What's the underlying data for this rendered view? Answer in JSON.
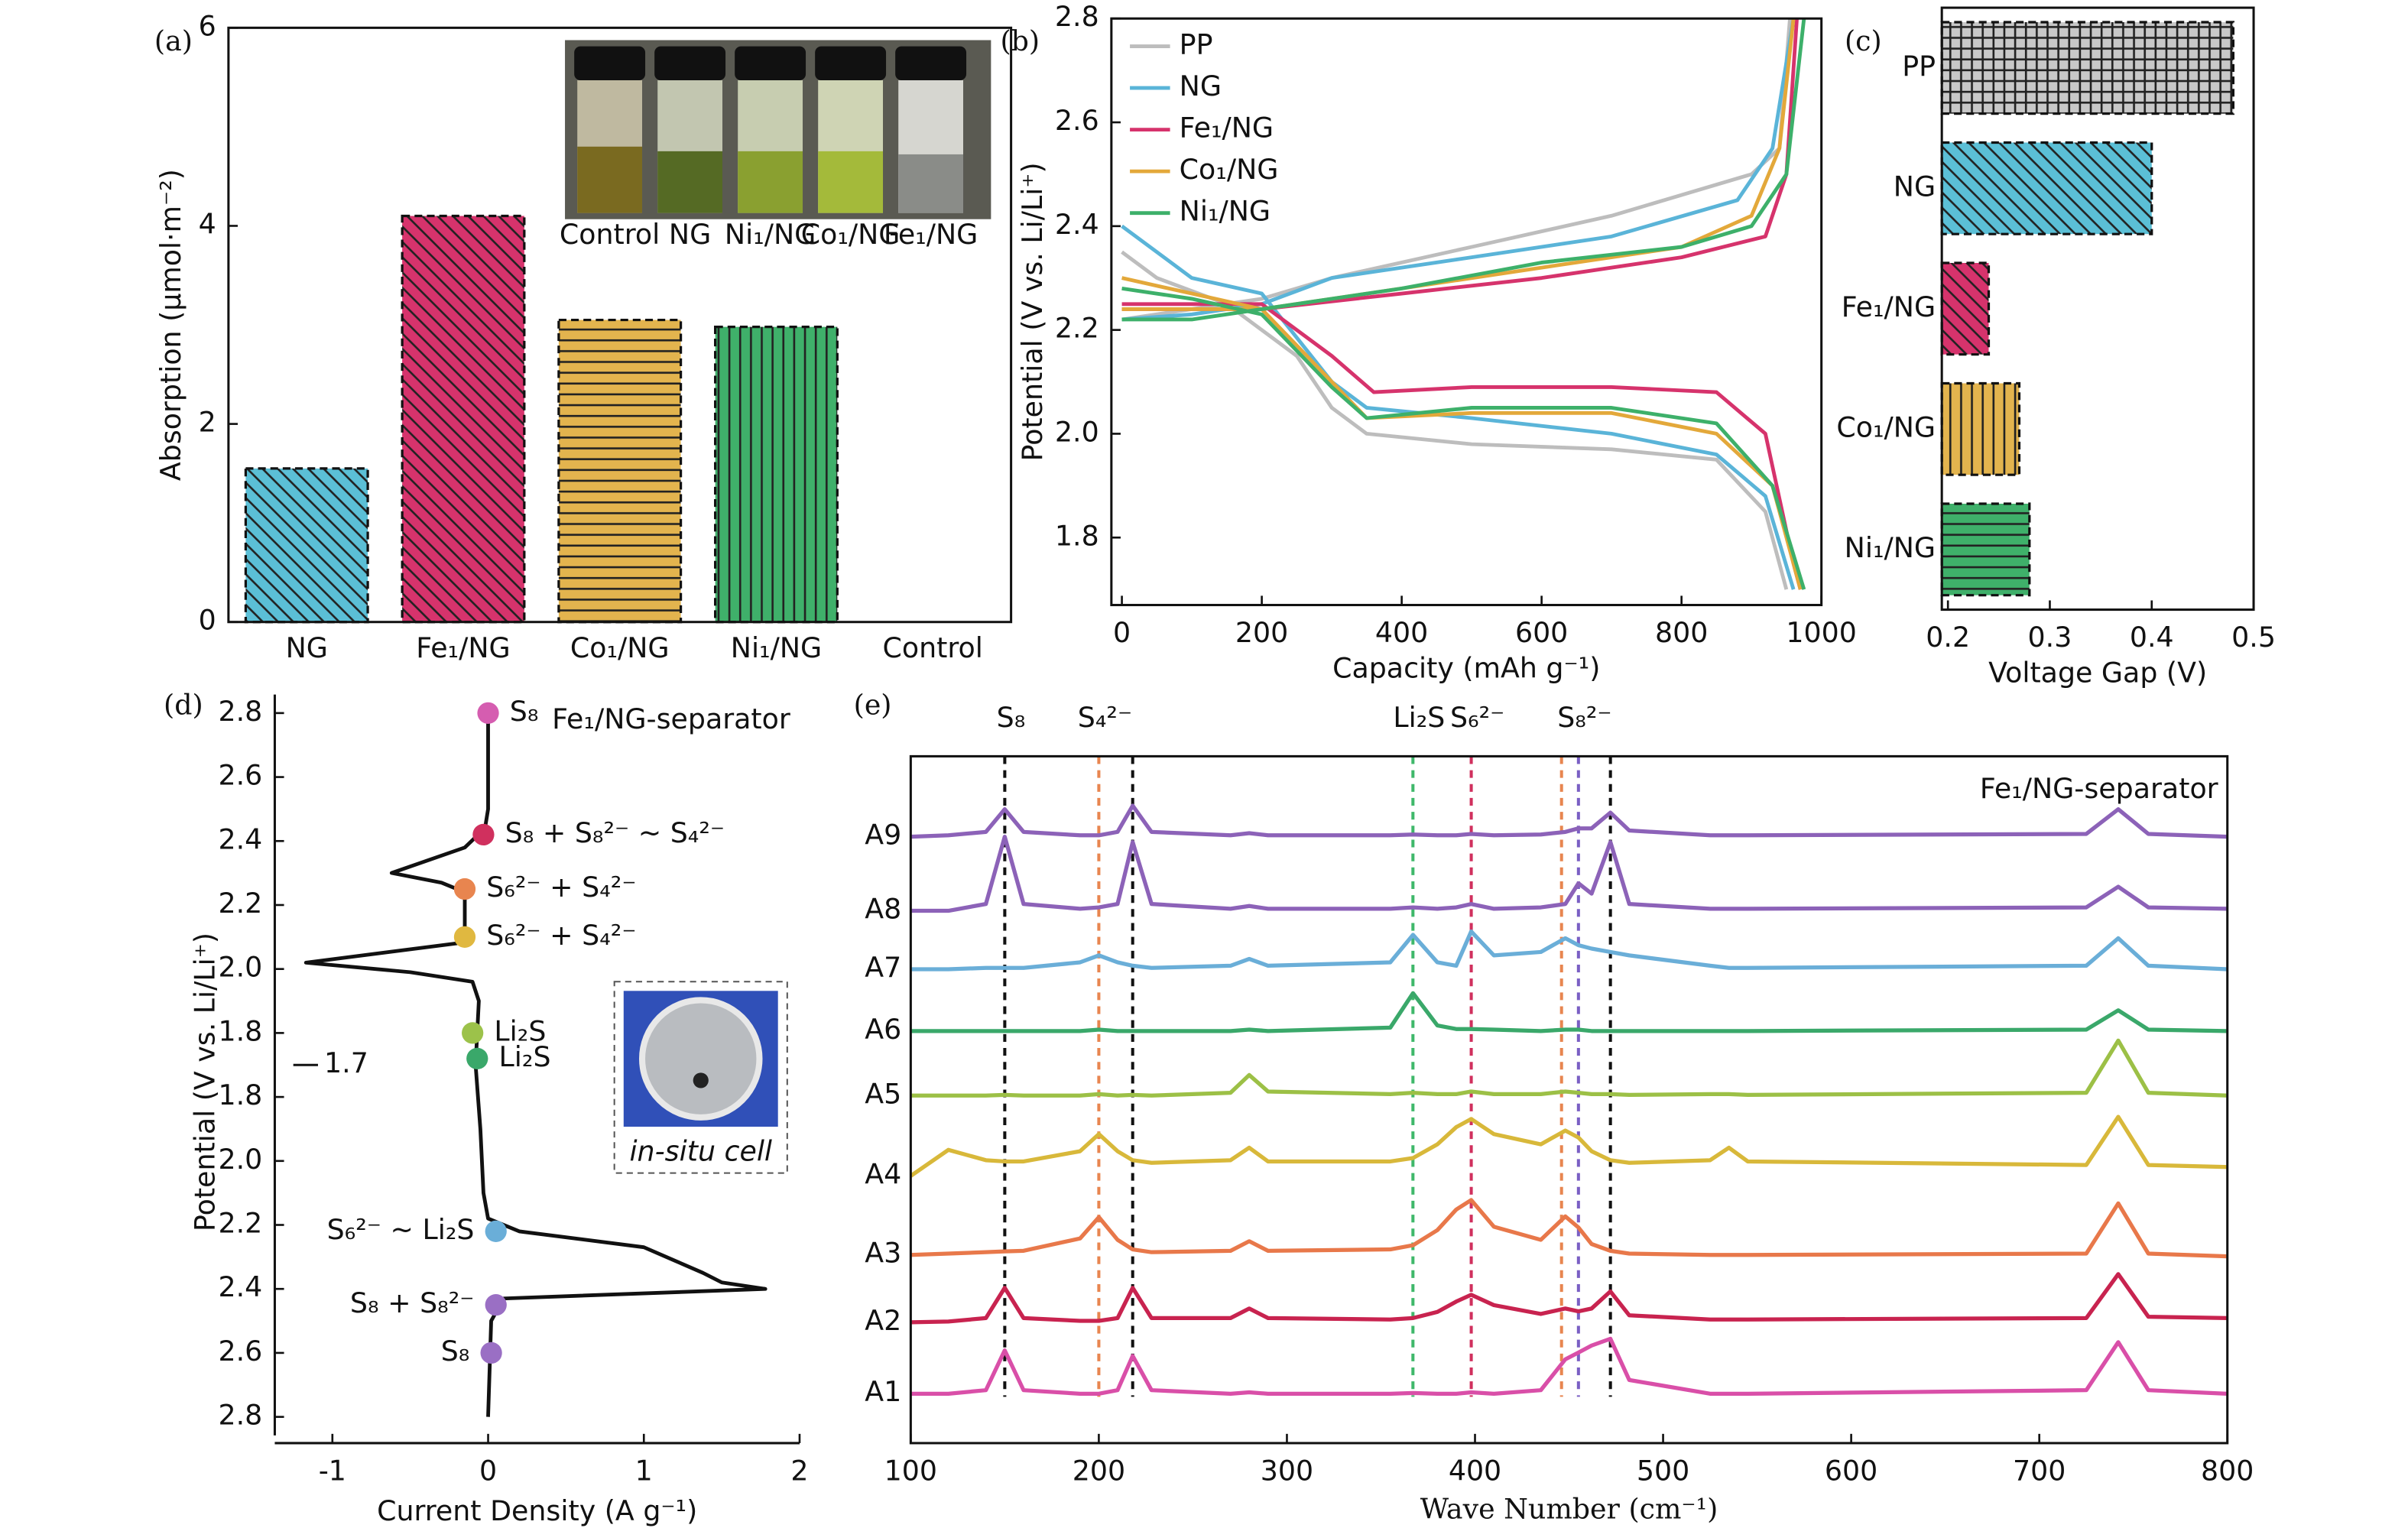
{
  "chart_data": [
    {
      "type": "bar",
      "label": "(a)",
      "ylabel": "Absorption (μmol·m⁻²)",
      "categories": [
        "NG",
        "Fe₁/NG",
        "Co₁/NG",
        "Ni₁/NG",
        "Control"
      ],
      "values": [
        1.55,
        4.1,
        3.05,
        2.98,
        null
      ],
      "colors": [
        "#5bbfd6",
        "#d6336c",
        "#e3b44e",
        "#3fb06a",
        "#999999"
      ],
      "hatches": [
        "diagonal",
        "diagonal",
        "horizontal",
        "vertical",
        "diagonal"
      ],
      "ylim": [
        0,
        6
      ],
      "yticks": [
        0,
        2,
        4,
        6
      ],
      "inset_labels": [
        {
          "text": "Control",
          "color": "#111111"
        },
        {
          "text": "NG",
          "color": "#4fb3d4"
        },
        {
          "text": "Ni₁/NG",
          "color": "#3aa860"
        },
        {
          "text": "Co₁/NG",
          "color": "#e0a030"
        },
        {
          "text": "Fe₁/NG",
          "color": "#d6336c"
        }
      ]
    },
    {
      "type": "line",
      "label": "(b)",
      "xlabel": "Capacity (mAh g⁻¹)",
      "ylabel": "Potential (V vs. Li/Li⁺)",
      "xlim": [
        -15,
        1000
      ],
      "xticks": [
        0,
        200,
        400,
        600,
        800,
        1000
      ],
      "ylim": [
        1.67,
        2.8
      ],
      "yticks": [
        1.8,
        {
          "value": 2,
          "label": "2.0"
        },
        2.2,
        2.4,
        2.6,
        2.8
      ],
      "series": [
        {
          "name": "PP",
          "color": "#bdbdbd",
          "x": [
            0,
            50,
            150,
            250,
            300,
            350,
            500,
            700,
            850,
            920,
            950,
            null,
            0,
            100,
            200,
            300,
            500,
            700,
            900,
            940,
            955
          ],
          "values": [
            2.35,
            2.3,
            2.25,
            2.15,
            2.05,
            2.0,
            1.98,
            1.97,
            1.95,
            1.85,
            1.7,
            null,
            2.22,
            2.24,
            2.26,
            2.3,
            2.36,
            2.42,
            2.5,
            2.55,
            2.8
          ]
        },
        {
          "name": "NG",
          "color": "#5ab4d8",
          "x": [
            0,
            100,
            200,
            300,
            350,
            500,
            700,
            850,
            920,
            960,
            null,
            0,
            100,
            200,
            300,
            500,
            700,
            880,
            930,
            960
          ],
          "values": [
            2.4,
            2.3,
            2.27,
            2.1,
            2.05,
            2.03,
            2.0,
            1.96,
            1.88,
            1.7,
            null,
            2.22,
            2.23,
            2.25,
            2.3,
            2.34,
            2.38,
            2.45,
            2.55,
            2.8
          ]
        },
        {
          "name": "Fe₁/NG",
          "color": "#d6336c",
          "x": [
            0,
            100,
            200,
            300,
            360,
            500,
            700,
            850,
            920,
            960,
            970,
            null,
            0,
            200,
            400,
            600,
            800,
            920,
            950,
            965
          ],
          "values": [
            2.25,
            2.25,
            2.25,
            2.15,
            2.08,
            2.09,
            2.09,
            2.08,
            2.0,
            1.75,
            1.7,
            null,
            2.24,
            2.24,
            2.27,
            2.3,
            2.34,
            2.38,
            2.5,
            2.8
          ]
        },
        {
          "name": "Co₁/NG",
          "color": "#e3a83a",
          "x": [
            0,
            100,
            200,
            300,
            350,
            500,
            700,
            850,
            930,
            970,
            null,
            0,
            200,
            400,
            600,
            800,
            900,
            940,
            960
          ],
          "values": [
            2.3,
            2.27,
            2.24,
            2.1,
            2.03,
            2.04,
            2.04,
            2.0,
            1.9,
            1.7,
            null,
            2.24,
            2.24,
            2.28,
            2.32,
            2.36,
            2.42,
            2.55,
            2.8
          ]
        },
        {
          "name": "Ni₁/NG",
          "color": "#3db06a",
          "x": [
            0,
            100,
            200,
            300,
            350,
            500,
            700,
            850,
            930,
            975,
            null,
            0,
            100,
            200,
            400,
            600,
            800,
            900,
            950,
            975
          ],
          "values": [
            2.28,
            2.26,
            2.23,
            2.09,
            2.03,
            2.05,
            2.05,
            2.02,
            1.9,
            1.7,
            null,
            2.22,
            2.22,
            2.24,
            2.28,
            2.33,
            2.36,
            2.4,
            2.5,
            2.8
          ]
        }
      ]
    },
    {
      "type": "hbar",
      "label": "(c)",
      "xlabel": "Voltage Gap (V)",
      "categories": [
        "PP",
        "NG",
        "Fe₁/NG",
        "Co₁/NG",
        "Ni₁/NG"
      ],
      "values": [
        0.48,
        0.4,
        0.24,
        0.27,
        0.28
      ],
      "colors": [
        "#c8c8c8",
        "#5bbfd6",
        "#d6336c",
        "#e3b44e",
        "#3fb06a"
      ],
      "hatches": [
        "grid",
        "diagonal",
        "diagonal",
        "vertical",
        "horizontal"
      ],
      "xlim": [
        0.194,
        0.5
      ],
      "xticks": [
        0.2,
        0.3,
        0.4,
        0.5
      ]
    },
    {
      "type": "sweep",
      "label": "(d)",
      "xlabel": "Current Density (A g⁻¹)",
      "ylabel": "Potential (V vs. Li/Li⁺)",
      "annotation": "Fe₁/NG-separator",
      "inset_caption": "in-situ cell",
      "xlim": [
        -1.37,
        2
      ],
      "xticks": [
        -1,
        0,
        1,
        2
      ],
      "ylim": [
        1.7,
        2.8
      ],
      "yticks": [
        2.8,
        2.6,
        2.4,
        2.2,
        {
          "value": 2,
          "label": "2.0"
        },
        1.8
      ],
      "yticks_charge": [
        1.8,
        {
          "value": 2,
          "label": "2.0"
        },
        2.2,
        2.4,
        2.6,
        2.8
      ],
      "color": "#111111",
      "x": [
        0,
        0,
        -0.02,
        -0.15,
        -0.62,
        -0.3,
        -0.15,
        -0.15,
        -0.2,
        -1.17,
        -0.5,
        -0.1,
        -0.06,
        -0.08,
        null,
        -0.08,
        -0.05,
        -0.03,
        0,
        0.2,
        1.0,
        1.38,
        1.5,
        1.78,
        0.1,
        0.02,
        0
      ],
      "values": [
        2.8,
        2.5,
        2.44,
        2.38,
        2.3,
        2.27,
        2.24,
        2.12,
        2.08,
        2.02,
        1.99,
        1.96,
        1.9,
        1.7,
        null,
        1.7,
        1.9,
        2.1,
        2.18,
        2.22,
        2.27,
        2.35,
        2.38,
        2.4,
        2.43,
        2.5,
        2.8
      ],
      "discharge_points": [
        {
          "label": "S₈",
          "color": "#d55db0",
          "x": 0,
          "y": 2.8
        },
        {
          "label": "S₈ + S₈²⁻ ~ S₄²⁻",
          "color": "#d0305e",
          "x": -0.03,
          "y": 2.42
        },
        {
          "label": "S₆²⁻ + S₄²⁻",
          "color": "#e8854f",
          "x": -0.15,
          "y": 2.25
        },
        {
          "label": "S₆²⁻ + S₄²⁻",
          "color": "#e0b840",
          "x": -0.15,
          "y": 2.1
        },
        {
          "label": "Li₂S",
          "color": "#9cc24a",
          "x": -0.1,
          "y": 1.8
        },
        {
          "label": "Li₂S",
          "color": "#3aa86a",
          "x": -0.07,
          "y": 1.72
        }
      ],
      "charge_points": [
        {
          "label": "S₆²⁻ ~ Li₂S",
          "color": "#6aaed8",
          "x": 0.05,
          "y": 2.22
        },
        {
          "label": "S₈ + S₈²⁻",
          "color": "#9a6fc4",
          "x": 0.05,
          "y": 2.45
        },
        {
          "label": "S₈",
          "color": "#9a6fc4",
          "x": 0.02,
          "y": 2.6
        }
      ]
    },
    {
      "type": "spectra",
      "label": "(e)",
      "xlabel": "Wave Number (cm⁻¹)",
      "annotation": "Fe₁/NG-separator",
      "xlim": [
        100,
        800
      ],
      "xticks": [
        100,
        200,
        300,
        400,
        500,
        600,
        700,
        800
      ],
      "ylim": [
        0,
        10
      ],
      "reference_lines": [
        {
          "x": 150,
          "color": "#111111",
          "label": "S₈"
        },
        {
          "x": 218,
          "color": "#111111"
        },
        {
          "x": 200,
          "color": "#e8854f",
          "label": "S₄²⁻"
        },
        {
          "x": 367,
          "color": "#3fb86a",
          "label": "Li₂S"
        },
        {
          "x": 398,
          "color": "#d0305e",
          "label": "S₆²⁻"
        },
        {
          "x": 446,
          "color": "#e8854f"
        },
        {
          "x": 455,
          "color": "#7a5fc4",
          "label": "S₈²⁻"
        },
        {
          "x": 472,
          "color": "#111111"
        }
      ],
      "x": [
        100,
        120,
        140,
        150,
        160,
        190,
        200,
        210,
        218,
        228,
        270,
        280,
        290,
        355,
        367,
        380,
        390,
        398,
        410,
        435,
        448,
        455,
        462,
        472,
        482,
        525,
        535,
        545,
        725,
        742,
        758,
        800
      ],
      "series": [
        {
          "name": "A1",
          "color": "#d94fa8",
          "values": [
            0.72,
            0.72,
            0.77,
            1.35,
            0.77,
            0.72,
            0.72,
            0.77,
            1.27,
            0.77,
            0.72,
            0.74,
            0.72,
            0.72,
            0.73,
            0.72,
            0.72,
            0.74,
            0.72,
            0.77,
            1.22,
            1.32,
            1.42,
            1.52,
            0.92,
            0.72,
            0.72,
            0.72,
            0.77,
            1.47,
            0.77,
            0.72
          ]
        },
        {
          "name": "A2",
          "color": "#c8234f",
          "values": [
            1.76,
            1.77,
            1.82,
            2.26,
            1.82,
            1.78,
            1.78,
            1.82,
            2.26,
            1.82,
            1.82,
            1.96,
            1.82,
            1.8,
            1.82,
            1.91,
            2.06,
            2.16,
            2.01,
            1.88,
            1.96,
            1.92,
            1.96,
            2.21,
            1.86,
            1.8,
            1.8,
            1.8,
            1.82,
            2.46,
            1.84,
            1.82
          ]
        },
        {
          "name": "A3",
          "color": "#e8784a",
          "values": [
            2.74,
            2.76,
            2.78,
            2.79,
            2.8,
            2.98,
            3.29,
            2.96,
            2.82,
            2.78,
            2.8,
            2.94,
            2.8,
            2.82,
            2.88,
            3.1,
            3.4,
            3.54,
            3.15,
            2.96,
            3.3,
            3.14,
            2.9,
            2.8,
            2.76,
            2.74,
            2.74,
            2.74,
            2.76,
            3.49,
            2.76,
            2.72
          ]
        },
        {
          "name": "A4",
          "color": "#d8b83a",
          "values": [
            3.89,
            4.27,
            4.12,
            4.1,
            4.1,
            4.25,
            4.5,
            4.25,
            4.12,
            4.08,
            4.12,
            4.3,
            4.1,
            4.1,
            4.15,
            4.35,
            4.6,
            4.72,
            4.5,
            4.35,
            4.55,
            4.45,
            4.25,
            4.12,
            4.08,
            4.12,
            4.3,
            4.1,
            4.05,
            4.75,
            4.05,
            4.02
          ]
        },
        {
          "name": "A5",
          "color": "#9cc046",
          "values": [
            5.06,
            5.06,
            5.06,
            5.07,
            5.06,
            5.06,
            5.08,
            5.06,
            5.07,
            5.06,
            5.1,
            5.36,
            5.12,
            5.08,
            5.1,
            5.08,
            5.08,
            5.12,
            5.08,
            5.08,
            5.12,
            5.1,
            5.08,
            5.08,
            5.07,
            5.08,
            5.08,
            5.07,
            5.1,
            5.86,
            5.1,
            5.06
          ]
        },
        {
          "name": "A6",
          "color": "#3aa86a",
          "values": [
            6.0,
            6.0,
            6.0,
            6.0,
            6.0,
            6.0,
            6.02,
            6.0,
            6.0,
            6.0,
            6.0,
            6.02,
            6.0,
            6.05,
            6.55,
            6.08,
            6.03,
            6.03,
            6.02,
            6.0,
            6.02,
            6.02,
            6.0,
            6.0,
            6.0,
            6.0,
            6.0,
            6.0,
            6.02,
            6.3,
            6.02,
            6.0
          ]
        },
        {
          "name": "A7",
          "color": "#6aaed8",
          "values": [
            6.9,
            6.9,
            6.92,
            6.92,
            6.92,
            7.0,
            7.1,
            7.0,
            6.95,
            6.92,
            6.95,
            7.05,
            6.95,
            7.0,
            7.4,
            7.0,
            6.95,
            7.45,
            7.1,
            7.15,
            7.35,
            7.25,
            7.2,
            7.15,
            7.1,
            6.95,
            6.92,
            6.92,
            6.95,
            7.35,
            6.95,
            6.9
          ]
        },
        {
          "name": "A8",
          "color": "#8c62b8",
          "values": [
            7.75,
            7.75,
            7.85,
            8.83,
            7.85,
            7.78,
            7.8,
            7.85,
            8.75,
            7.85,
            7.78,
            7.82,
            7.78,
            7.78,
            7.8,
            7.78,
            7.8,
            7.85,
            7.78,
            7.8,
            7.85,
            8.15,
            8.0,
            8.75,
            7.85,
            7.78,
            7.78,
            7.78,
            7.8,
            8.1,
            7.8,
            7.78
          ]
        },
        {
          "name": "A9",
          "color": "#8c62b8",
          "values": [
            8.83,
            8.85,
            8.9,
            9.23,
            8.9,
            8.85,
            8.85,
            8.9,
            9.28,
            8.9,
            8.85,
            8.88,
            8.85,
            8.85,
            8.86,
            8.85,
            8.85,
            8.87,
            8.85,
            8.86,
            8.9,
            8.95,
            8.95,
            9.18,
            8.92,
            8.85,
            8.85,
            8.85,
            8.87,
            9.23,
            8.87,
            8.83
          ]
        }
      ]
    }
  ]
}
